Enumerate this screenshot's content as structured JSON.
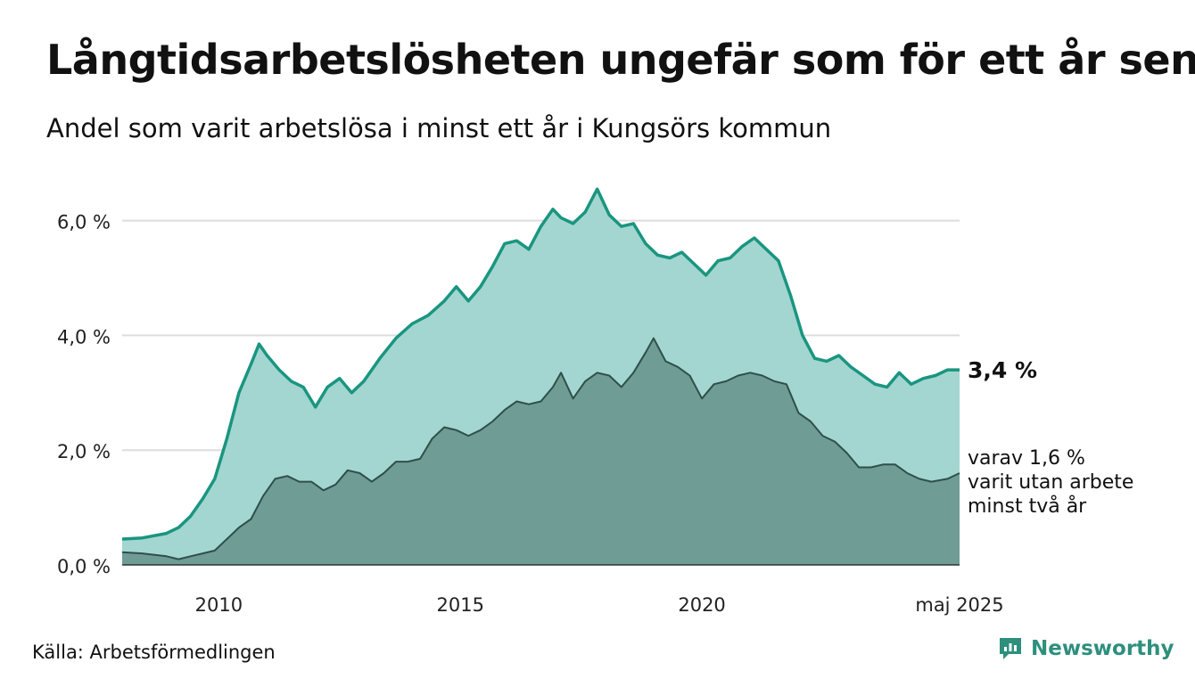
{
  "header": {
    "title": "Långtidsarbetslösheten ungefär som för ett år sen",
    "subtitle": "Andel som varit arbetslösa i minst ett år i Kungsörs kommun"
  },
  "footer": {
    "source": "Källa: Arbetsförmedlingen",
    "brand": "Newsworthy"
  },
  "colors": {
    "series1_line": "#1a9580",
    "series1_fill": "#a3d6d0",
    "series2_line": "#2f4f4a",
    "series2_fill": "#6f9c95",
    "grid": "#dddddd"
  },
  "chart_data": {
    "type": "area",
    "x_axis": {
      "min": "2008-01",
      "max": "2025-05",
      "tick_labels": [
        "2010",
        "2015",
        "2020",
        "maj 2025"
      ],
      "tick_positions": [
        "2010-01",
        "2015-01",
        "2020-01",
        "2025-05"
      ]
    },
    "y_axis": {
      "min": 0,
      "max": 6.6,
      "ticks": [
        0,
        2,
        4,
        6
      ],
      "tick_labels": [
        "0,0 %",
        "2,0 %",
        "4,0 %",
        "6,0 %"
      ]
    },
    "grid": true,
    "annotations": {
      "last_value_label": "3,4 %",
      "sub_label_lines": [
        "varav 1,6 %",
        "varit utan arbete",
        "minst två år"
      ]
    },
    "series": [
      {
        "name": "minst ett år",
        "points": [
          [
            "2008-01",
            0.45
          ],
          [
            "2008-06",
            0.47
          ],
          [
            "2008-12",
            0.55
          ],
          [
            "2009-03",
            0.65
          ],
          [
            "2009-06",
            0.85
          ],
          [
            "2009-09",
            1.15
          ],
          [
            "2009-12",
            1.5
          ],
          [
            "2010-03",
            2.2
          ],
          [
            "2010-06",
            3.0
          ],
          [
            "2010-09",
            3.5
          ],
          [
            "2010-11",
            3.85
          ],
          [
            "2011-01",
            3.65
          ],
          [
            "2011-04",
            3.4
          ],
          [
            "2011-07",
            3.2
          ],
          [
            "2011-10",
            3.1
          ],
          [
            "2012-01",
            2.75
          ],
          [
            "2012-04",
            3.1
          ],
          [
            "2012-07",
            3.25
          ],
          [
            "2012-10",
            3.0
          ],
          [
            "2013-01",
            3.2
          ],
          [
            "2013-05",
            3.6
          ],
          [
            "2013-09",
            3.95
          ],
          [
            "2014-01",
            4.2
          ],
          [
            "2014-05",
            4.35
          ],
          [
            "2014-09",
            4.6
          ],
          [
            "2014-12",
            4.85
          ],
          [
            "2015-03",
            4.6
          ],
          [
            "2015-06",
            4.85
          ],
          [
            "2015-09",
            5.2
          ],
          [
            "2015-12",
            5.6
          ],
          [
            "2016-03",
            5.65
          ],
          [
            "2016-06",
            5.5
          ],
          [
            "2016-09",
            5.9
          ],
          [
            "2016-12",
            6.2
          ],
          [
            "2017-02",
            6.05
          ],
          [
            "2017-05",
            5.95
          ],
          [
            "2017-08",
            6.15
          ],
          [
            "2017-11",
            6.55
          ],
          [
            "2018-02",
            6.1
          ],
          [
            "2018-05",
            5.9
          ],
          [
            "2018-08",
            5.95
          ],
          [
            "2018-11",
            5.6
          ],
          [
            "2019-02",
            5.4
          ],
          [
            "2019-05",
            5.35
          ],
          [
            "2019-08",
            5.45
          ],
          [
            "2019-11",
            5.25
          ],
          [
            "2020-02",
            5.05
          ],
          [
            "2020-05",
            5.3
          ],
          [
            "2020-08",
            5.35
          ],
          [
            "2020-11",
            5.55
          ],
          [
            "2021-02",
            5.7
          ],
          [
            "2021-05",
            5.5
          ],
          [
            "2021-08",
            5.3
          ],
          [
            "2021-11",
            4.7
          ],
          [
            "2022-02",
            4.0
          ],
          [
            "2022-05",
            3.6
          ],
          [
            "2022-08",
            3.55
          ],
          [
            "2022-11",
            3.65
          ],
          [
            "2023-02",
            3.45
          ],
          [
            "2023-05",
            3.3
          ],
          [
            "2023-08",
            3.15
          ],
          [
            "2023-11",
            3.1
          ],
          [
            "2024-02",
            3.35
          ],
          [
            "2024-05",
            3.15
          ],
          [
            "2024-08",
            3.25
          ],
          [
            "2024-11",
            3.3
          ],
          [
            "2025-02",
            3.4
          ],
          [
            "2025-05",
            3.4
          ]
        ]
      },
      {
        "name": "minst två år",
        "points": [
          [
            "2008-01",
            0.22
          ],
          [
            "2008-06",
            0.2
          ],
          [
            "2008-12",
            0.15
          ],
          [
            "2009-03",
            0.1
          ],
          [
            "2009-06",
            0.15
          ],
          [
            "2009-09",
            0.2
          ],
          [
            "2009-12",
            0.25
          ],
          [
            "2010-03",
            0.45
          ],
          [
            "2010-06",
            0.65
          ],
          [
            "2010-09",
            0.8
          ],
          [
            "2010-12",
            1.2
          ],
          [
            "2011-03",
            1.5
          ],
          [
            "2011-06",
            1.55
          ],
          [
            "2011-09",
            1.45
          ],
          [
            "2011-12",
            1.45
          ],
          [
            "2012-03",
            1.3
          ],
          [
            "2012-06",
            1.4
          ],
          [
            "2012-09",
            1.65
          ],
          [
            "2012-12",
            1.6
          ],
          [
            "2013-03",
            1.45
          ],
          [
            "2013-06",
            1.6
          ],
          [
            "2013-09",
            1.8
          ],
          [
            "2013-12",
            1.8
          ],
          [
            "2014-03",
            1.85
          ],
          [
            "2014-06",
            2.2
          ],
          [
            "2014-09",
            2.4
          ],
          [
            "2014-12",
            2.35
          ],
          [
            "2015-03",
            2.25
          ],
          [
            "2015-06",
            2.35
          ],
          [
            "2015-09",
            2.5
          ],
          [
            "2015-12",
            2.7
          ],
          [
            "2016-03",
            2.85
          ],
          [
            "2016-06",
            2.8
          ],
          [
            "2016-09",
            2.85
          ],
          [
            "2016-12",
            3.1
          ],
          [
            "2017-02",
            3.35
          ],
          [
            "2017-05",
            2.9
          ],
          [
            "2017-08",
            3.2
          ],
          [
            "2017-11",
            3.35
          ],
          [
            "2018-02",
            3.3
          ],
          [
            "2018-05",
            3.1
          ],
          [
            "2018-08",
            3.35
          ],
          [
            "2018-11",
            3.7
          ],
          [
            "2019-01",
            3.95
          ],
          [
            "2019-04",
            3.55
          ],
          [
            "2019-07",
            3.45
          ],
          [
            "2019-10",
            3.3
          ],
          [
            "2020-01",
            2.9
          ],
          [
            "2020-04",
            3.15
          ],
          [
            "2020-07",
            3.2
          ],
          [
            "2020-10",
            3.3
          ],
          [
            "2021-01",
            3.35
          ],
          [
            "2021-04",
            3.3
          ],
          [
            "2021-07",
            3.2
          ],
          [
            "2021-10",
            3.15
          ],
          [
            "2022-01",
            2.65
          ],
          [
            "2022-04",
            2.5
          ],
          [
            "2022-07",
            2.25
          ],
          [
            "2022-10",
            2.15
          ],
          [
            "2023-01",
            1.95
          ],
          [
            "2023-04",
            1.7
          ],
          [
            "2023-07",
            1.7
          ],
          [
            "2023-10",
            1.75
          ],
          [
            "2024-01",
            1.75
          ],
          [
            "2024-04",
            1.6
          ],
          [
            "2024-07",
            1.5
          ],
          [
            "2024-10",
            1.45
          ],
          [
            "2025-02",
            1.5
          ],
          [
            "2025-05",
            1.6
          ]
        ]
      }
    ]
  }
}
